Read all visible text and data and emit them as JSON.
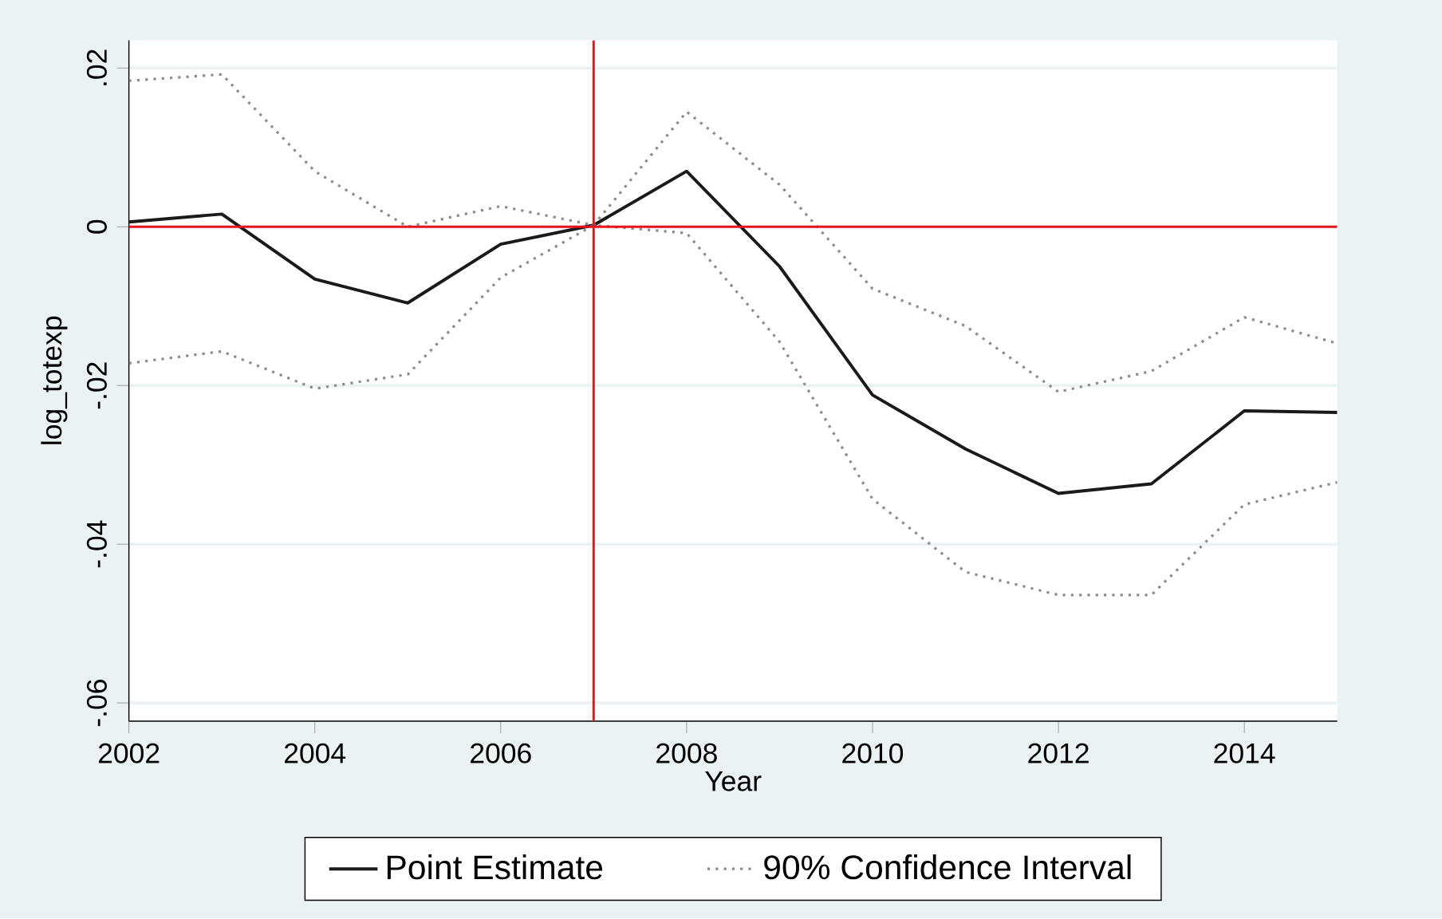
{
  "chart_data": {
    "type": "line",
    "xlabel": "Year",
    "ylabel": "log_totexp",
    "x": [
      2002,
      2003,
      2004,
      2005,
      2006,
      2007,
      2008,
      2009,
      2010,
      2011,
      2012,
      2013,
      2014,
      2015
    ],
    "series": [
      {
        "name": "Point Estimate",
        "color": "#1a1a1a",
        "line_style": "solid",
        "values": [
          0.0006,
          0.0016,
          -0.0066,
          -0.0096,
          -0.0022,
          0.0002,
          0.007,
          -0.005,
          -0.0212,
          -0.028,
          -0.0336,
          -0.0324,
          -0.0232,
          -0.0234
        ]
      },
      {
        "name": "90% Confidence Interval",
        "color": "#8c8c8c",
        "line_style": "dotted",
        "values": [
          0.0184,
          0.0192,
          0.007,
          0.0,
          0.0026,
          0.0002,
          0.0145,
          0.0053,
          -0.0078,
          -0.0125,
          -0.0208,
          -0.0182,
          -0.0114,
          -0.0147
        ]
      },
      {
        "color": "#8c8c8c",
        "line_style": "dotted",
        "values": [
          -0.0172,
          -0.0157,
          -0.0204,
          -0.0186,
          -0.0064,
          0.0002,
          -0.0008,
          -0.0145,
          -0.0343,
          -0.0435,
          -0.0464,
          -0.0464,
          -0.035,
          -0.0322
        ]
      }
    ],
    "xlim": [
      2002,
      2015
    ],
    "xticks": [
      2002,
      2004,
      2006,
      2008,
      2010,
      2012,
      2014
    ],
    "ylim": [
      -0.0623,
      0.0235
    ],
    "yticks": [
      {
        "value": 0.02,
        "label": ".02"
      },
      {
        "value": 0,
        "label": "0"
      },
      {
        "value": -0.02,
        "label": "-.02"
      },
      {
        "value": -0.04,
        "label": "-.04"
      },
      {
        "value": -0.06,
        "label": "-.06"
      }
    ],
    "ref_lines": [
      {
        "axis": "x",
        "value": 2007,
        "color": "#e8141c"
      },
      {
        "axis": "y",
        "value": 0,
        "color": "#e8141c"
      }
    ],
    "grid": "y",
    "legend": "bottom",
    "marker": "none"
  }
}
